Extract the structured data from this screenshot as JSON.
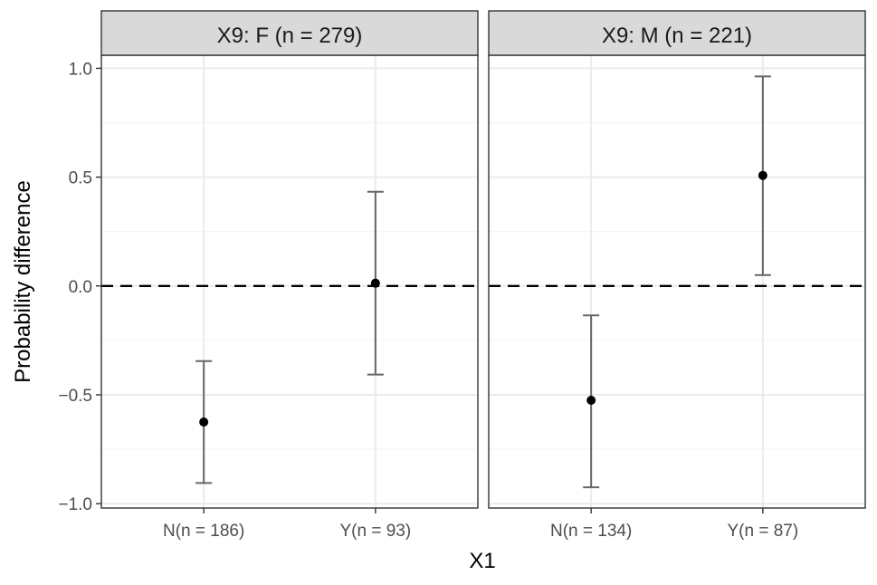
{
  "chart_data": {
    "type": "errorbar",
    "xlabel": "X1",
    "ylabel": "Probability difference",
    "ylim": [
      -1.02,
      1.06
    ],
    "yticks": [
      -1.0,
      -0.5,
      0.0,
      0.5,
      1.0
    ],
    "ytick_labels": [
      "−1.0",
      "−0.5",
      "0.0",
      "0.5",
      "1.0"
    ],
    "reference_line": 0.0,
    "grid": true,
    "panels": [
      {
        "title": "X9: F (n = 279)",
        "categories": [
          "N(n = 186)",
          "Y(n = 93)"
        ],
        "points": [
          {
            "estimate": -0.625,
            "lower": -0.905,
            "upper": -0.345
          },
          {
            "estimate": 0.013,
            "lower": -0.407,
            "upper": 0.433
          }
        ]
      },
      {
        "title": "X9: M (n = 221)",
        "categories": [
          "N(n = 134)",
          "Y(n = 87)"
        ],
        "points": [
          {
            "estimate": -0.525,
            "lower": -0.925,
            "upper": -0.135
          },
          {
            "estimate": 0.508,
            "lower": 0.05,
            "upper": 0.963
          }
        ]
      }
    ]
  }
}
